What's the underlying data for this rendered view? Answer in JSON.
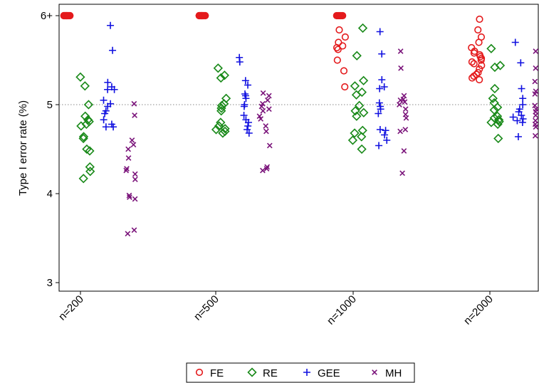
{
  "chart_data": {
    "type": "scatter",
    "title": "",
    "xlabel": "",
    "ylabel": "Type I error rate (%)",
    "categories": [
      "n=200",
      "n=500",
      "n=1000",
      "n=2000"
    ],
    "yticks": [
      {
        "value": 3,
        "label": "3"
      },
      {
        "value": 4,
        "label": "4"
      },
      {
        "value": 5,
        "label": "5"
      },
      {
        "value": 6,
        "label": "6+"
      }
    ],
    "ylim": [
      2.9,
      6.1
    ],
    "reference_line": 5,
    "legend_position": "bottom",
    "series": [
      {
        "name": "FE",
        "marker": "circle",
        "color": "#e41a1c",
        "groups": [
          [
            6.0,
            6.0,
            6.0,
            6.0,
            6.0,
            6.0,
            6.0,
            6.0,
            6.0,
            6.0,
            6.0,
            6.0,
            6.0,
            6.0,
            6.0,
            6.0,
            6.0,
            6.0,
            6.0,
            6.0
          ],
          [
            6.0,
            6.0,
            6.0,
            6.0,
            6.0,
            6.0,
            6.0,
            6.0,
            6.0,
            6.0,
            6.0,
            6.0,
            6.0,
            6.0,
            6.0,
            6.0,
            6.0,
            6.0,
            6.0,
            6.0
          ],
          [
            6.0,
            6.0,
            6.0,
            6.0,
            6.0,
            6.0,
            6.0,
            6.0,
            5.84,
            5.76,
            5.7,
            5.66,
            5.64,
            5.62,
            5.5,
            5.38,
            5.2
          ],
          [
            5.96,
            5.84,
            5.76,
            5.7,
            5.64,
            5.6,
            5.58,
            5.56,
            5.54,
            5.52,
            5.5,
            5.48,
            5.46,
            5.44,
            5.4,
            5.36,
            5.34,
            5.32,
            5.3,
            5.28
          ]
        ]
      },
      {
        "name": "RE",
        "marker": "diamond",
        "color": "#1a8a1a",
        "groups": [
          [
            5.31,
            5.21,
            5.0,
            4.87,
            4.83,
            4.81,
            4.78,
            4.76,
            4.64,
            4.62,
            4.5,
            4.48,
            4.3,
            4.25,
            4.17
          ],
          [
            5.41,
            5.33,
            5.3,
            5.07,
            5.01,
            4.99,
            4.96,
            4.93,
            4.8,
            4.76,
            4.73,
            4.72,
            4.7,
            4.68
          ],
          [
            5.86,
            5.55,
            5.27,
            5.21,
            5.14,
            5.11,
            4.99,
            4.93,
            4.91,
            4.87,
            4.71,
            4.68,
            4.64,
            4.6,
            4.5
          ],
          [
            5.63,
            5.44,
            5.42,
            5.18,
            5.07,
            5.02,
            4.97,
            4.94,
            4.87,
            4.85,
            4.83,
            4.81,
            4.8,
            4.78,
            4.62
          ]
        ]
      },
      {
        "name": "GEE",
        "marker": "plus",
        "color": "#1010e0",
        "groups": [
          [
            5.89,
            5.61,
            5.25,
            5.2,
            5.17,
            5.17,
            5.05,
            5.01,
            4.98,
            4.93,
            4.9,
            4.83,
            4.78,
            4.75,
            4.75
          ],
          [
            5.53,
            5.48,
            5.27,
            5.22,
            5.12,
            5.1,
            5.07,
            5.0,
            4.98,
            4.88,
            4.83,
            4.8,
            4.76,
            4.72,
            4.68
          ],
          [
            5.82,
            5.57,
            5.28,
            5.2,
            5.18,
            5.02,
            4.98,
            4.95,
            4.9,
            4.72,
            4.71,
            4.66,
            4.6,
            4.54
          ],
          [
            5.7,
            5.47,
            5.18,
            5.07,
            5.0,
            4.95,
            4.92,
            4.88,
            4.86,
            4.84,
            4.82,
            4.8,
            4.64
          ]
        ]
      },
      {
        "name": "MH",
        "marker": "x",
        "color": "#7a137a",
        "groups": [
          [
            5.01,
            4.88,
            4.6,
            4.55,
            4.5,
            4.4,
            4.28,
            4.26,
            4.22,
            4.16,
            3.98,
            3.96,
            3.94,
            3.59,
            3.55
          ],
          [
            5.13,
            5.1,
            5.05,
            5.01,
            4.98,
            4.95,
            4.93,
            4.87,
            4.84,
            4.76,
            4.7,
            4.54,
            4.3,
            4.28,
            4.26
          ],
          [
            5.6,
            5.41,
            5.1,
            5.06,
            5.05,
            5.03,
            5.0,
            4.95,
            4.89,
            4.85,
            4.72,
            4.7,
            4.48,
            4.23
          ],
          [
            5.6,
            5.41,
            5.26,
            5.15,
            5.12,
            4.99,
            4.95,
            4.92,
            4.88,
            4.82,
            4.78,
            4.75,
            4.65
          ]
        ]
      }
    ]
  }
}
